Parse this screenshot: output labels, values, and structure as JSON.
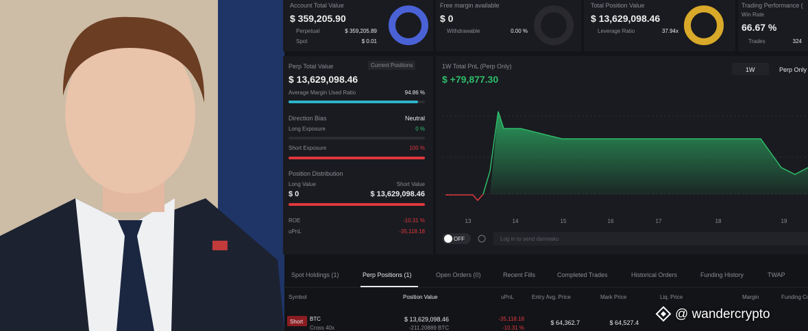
{
  "cards": [
    {
      "title": "Account Total Value",
      "value": "$ 359,205.90",
      "rows": [
        {
          "label": "Perpetual",
          "value": "$ 359,205.89"
        },
        {
          "label": "Spot",
          "value": "$ 0.01"
        }
      ]
    },
    {
      "title": "Free margin available",
      "value": "$ 0",
      "rows": [
        {
          "label": "Withdrawable",
          "value": "0.00 %"
        }
      ]
    },
    {
      "title": "Total Position Value",
      "value": "$ 13,629,098.46",
      "rows": [
        {
          "label": "Leverage Ratio",
          "value": "37.94x"
        }
      ]
    },
    {
      "title": "Trading Performance (",
      "subtitle": "Win Rate",
      "value": "66.67 %",
      "rows": [
        {
          "label": "Trades",
          "value": "324"
        }
      ]
    }
  ],
  "perp_panel": {
    "title": "Perp Total Value",
    "button": "Current Positions",
    "value": "$ 13,629,098.46",
    "margin_label": "Average Margin Used Ratio",
    "margin_value": "94.86 %",
    "bias_label": "Direction Bias",
    "bias_value": "Neutral",
    "long_label": "Long Exposure",
    "long_value": "0 %",
    "short_label": "Short Exposure",
    "short_value": "100 %",
    "dist_label": "Position Distribution",
    "long_value_label": "Long Value",
    "short_value_label": "Short Value",
    "long_amount": "$ 0",
    "short_amount": "$ 13,629,098.46",
    "roe_label": "ROE",
    "roe_value": "-10.31 %",
    "upnl_label": "uPnL",
    "upnl_value": "-35,118.18"
  },
  "pnl_panel": {
    "title": "1W Total PnL (Perp Only)",
    "value": "$ +79,877.30",
    "period": "1W",
    "filter": "Perp Only",
    "x_labels": [
      "13",
      "14",
      "15",
      "16",
      "17",
      "18",
      "19"
    ],
    "toggle": "OFF",
    "input_placeholder": "Log in to send danmaku"
  },
  "tabs": [
    "Spot Holdings (1)",
    "Perp Positions (1)",
    "Open Orders (0)",
    "Recent Fills",
    "Completed Trades",
    "Historical Orders",
    "Funding History",
    "TWAP"
  ],
  "table": {
    "headers": [
      "Symbol",
      "Position Value",
      "uPnL",
      "Entry Avg. Price",
      "Mark Price",
      "Liq. Price",
      "Margin",
      "Funding Co"
    ],
    "row": {
      "side": "Short",
      "symbol": "BTC",
      "mode": "Cross 40x",
      "position_value": "$ 13,629,098.46",
      "size": "-211.20889 BTC",
      "upnl": "-35,118.18",
      "upnl_pct": "-10.31 %",
      "entry": "$ 64,362.7",
      "mark": "$ 64,527.4"
    }
  },
  "watermark": "@ wandercrypto"
}
